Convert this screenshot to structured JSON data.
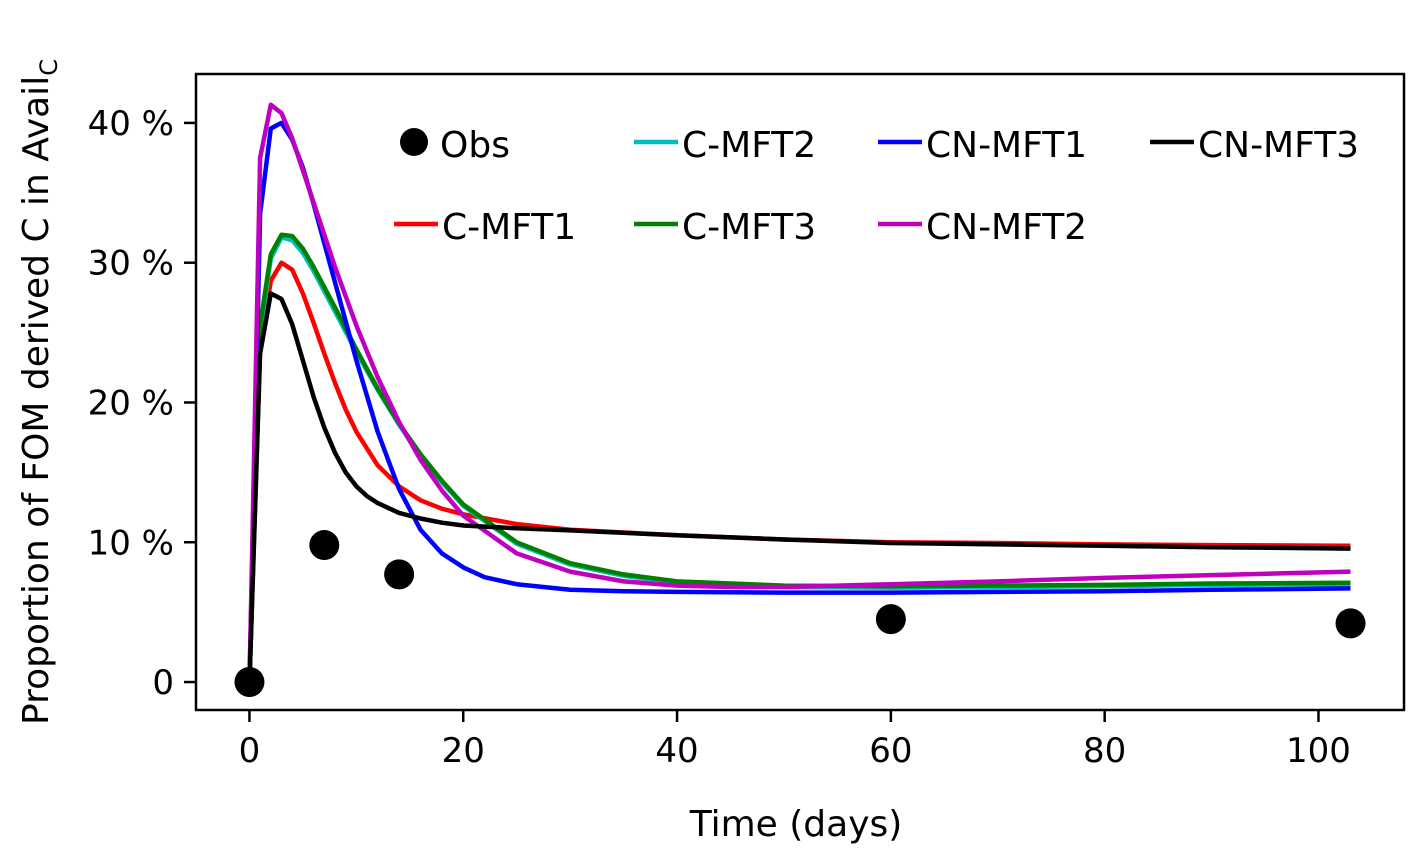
{
  "chart_data": {
    "type": "line",
    "xlabel": "Time (days)",
    "ylabel": "Proportion of FOM derived C in Avail",
    "ylabel_subscript": "C",
    "xlim": [
      -5,
      108
    ],
    "ylim": [
      -2,
      43.5
    ],
    "x_ticks": [
      0,
      20,
      40,
      60,
      80,
      100
    ],
    "x_tick_labels": [
      "0",
      "20",
      "40",
      "60",
      "80",
      "100"
    ],
    "y_ticks": [
      0,
      10,
      20,
      30,
      40
    ],
    "y_tick_labels": [
      "0",
      "10 %",
      "20 %",
      "30 %",
      "40 %"
    ],
    "legend_position": "top",
    "observations": {
      "name": "Obs",
      "color": "#000000",
      "x": [
        0,
        7,
        14,
        60,
        103
      ],
      "y": [
        0,
        9.8,
        7.7,
        4.5,
        4.2
      ]
    },
    "series": [
      {
        "name": "C-MFT1",
        "color": "#ff0000",
        "x": [
          0,
          1,
          2,
          3,
          4,
          5,
          6,
          7,
          8,
          9,
          10,
          12,
          14,
          16,
          18,
          20,
          25,
          30,
          40,
          50,
          60,
          70,
          80,
          90,
          103
        ],
        "y": [
          0,
          24,
          28.7,
          30.0,
          29.5,
          27.8,
          25.7,
          23.5,
          21.4,
          19.5,
          17.9,
          15.5,
          14.0,
          13.0,
          12.4,
          12.0,
          11.3,
          10.9,
          10.5,
          10.2,
          10.0,
          9.95,
          9.85,
          9.8,
          9.75
        ]
      },
      {
        "name": "C-MFT2",
        "color": "#00bfbf",
        "x": [
          0,
          1,
          2,
          3,
          4,
          5,
          6,
          8,
          10,
          12,
          14,
          16,
          18,
          20,
          25,
          30,
          35,
          40,
          50,
          60,
          70,
          80,
          90,
          103
        ],
        "y": [
          0,
          25,
          30.3,
          31.8,
          31.6,
          30.7,
          29.4,
          26.5,
          23.6,
          20.9,
          18.4,
          16.2,
          14.3,
          12.6,
          9.9,
          8.4,
          7.6,
          7.1,
          6.8,
          6.75,
          6.8,
          6.85,
          6.95,
          7.0
        ]
      },
      {
        "name": "C-MFT3",
        "color": "#008000",
        "x": [
          0,
          1,
          2,
          3,
          4,
          5,
          6,
          8,
          10,
          12,
          14,
          16,
          18,
          20,
          25,
          30,
          35,
          40,
          50,
          60,
          70,
          80,
          90,
          103
        ],
        "y": [
          0,
          25.5,
          30.6,
          32.0,
          31.9,
          31.0,
          29.7,
          26.8,
          23.8,
          21.0,
          18.5,
          16.3,
          14.4,
          12.7,
          10.0,
          8.5,
          7.7,
          7.2,
          6.9,
          6.85,
          6.9,
          6.95,
          7.05,
          7.1
        ]
      },
      {
        "name": "CN-MFT1",
        "color": "#0000ff",
        "x": [
          0,
          1,
          2,
          3,
          4,
          5,
          6,
          8,
          10,
          12,
          14,
          16,
          18,
          20,
          22,
          25,
          30,
          35,
          40,
          50,
          60,
          70,
          80,
          90,
          103
        ],
        "y": [
          0,
          33.5,
          39.6,
          40.0,
          38.8,
          36.8,
          34.2,
          28.6,
          23.0,
          17.9,
          13.8,
          10.9,
          9.2,
          8.2,
          7.5,
          7.0,
          6.6,
          6.5,
          6.45,
          6.4,
          6.4,
          6.45,
          6.5,
          6.6,
          6.7
        ]
      },
      {
        "name": "CN-MFT2",
        "color": "#bf00bf",
        "x": [
          0,
          1,
          2,
          3,
          4,
          5,
          6,
          8,
          10,
          12,
          14,
          16,
          18,
          20,
          25,
          30,
          35,
          40,
          45,
          50,
          60,
          70,
          80,
          90,
          103
        ],
        "y": [
          0,
          37.5,
          41.3,
          40.7,
          38.9,
          36.6,
          34.3,
          29.7,
          25.5,
          21.8,
          18.6,
          15.9,
          13.7,
          11.9,
          9.2,
          7.9,
          7.2,
          6.9,
          6.8,
          6.8,
          7.0,
          7.2,
          7.45,
          7.65,
          7.9
        ]
      },
      {
        "name": "CN-MFT3",
        "color": "#000000",
        "x": [
          0,
          1,
          2,
          3,
          4,
          5,
          6,
          7,
          8,
          9,
          10,
          11,
          12,
          14,
          16,
          18,
          20,
          25,
          30,
          40,
          50,
          60,
          70,
          80,
          90,
          103
        ],
        "y": [
          0,
          23.5,
          27.8,
          27.4,
          25.6,
          23.0,
          20.4,
          18.2,
          16.4,
          15.0,
          14.0,
          13.3,
          12.8,
          12.1,
          11.7,
          11.4,
          11.2,
          11.0,
          10.85,
          10.5,
          10.2,
          9.95,
          9.85,
          9.75,
          9.65,
          9.55
        ]
      }
    ]
  }
}
